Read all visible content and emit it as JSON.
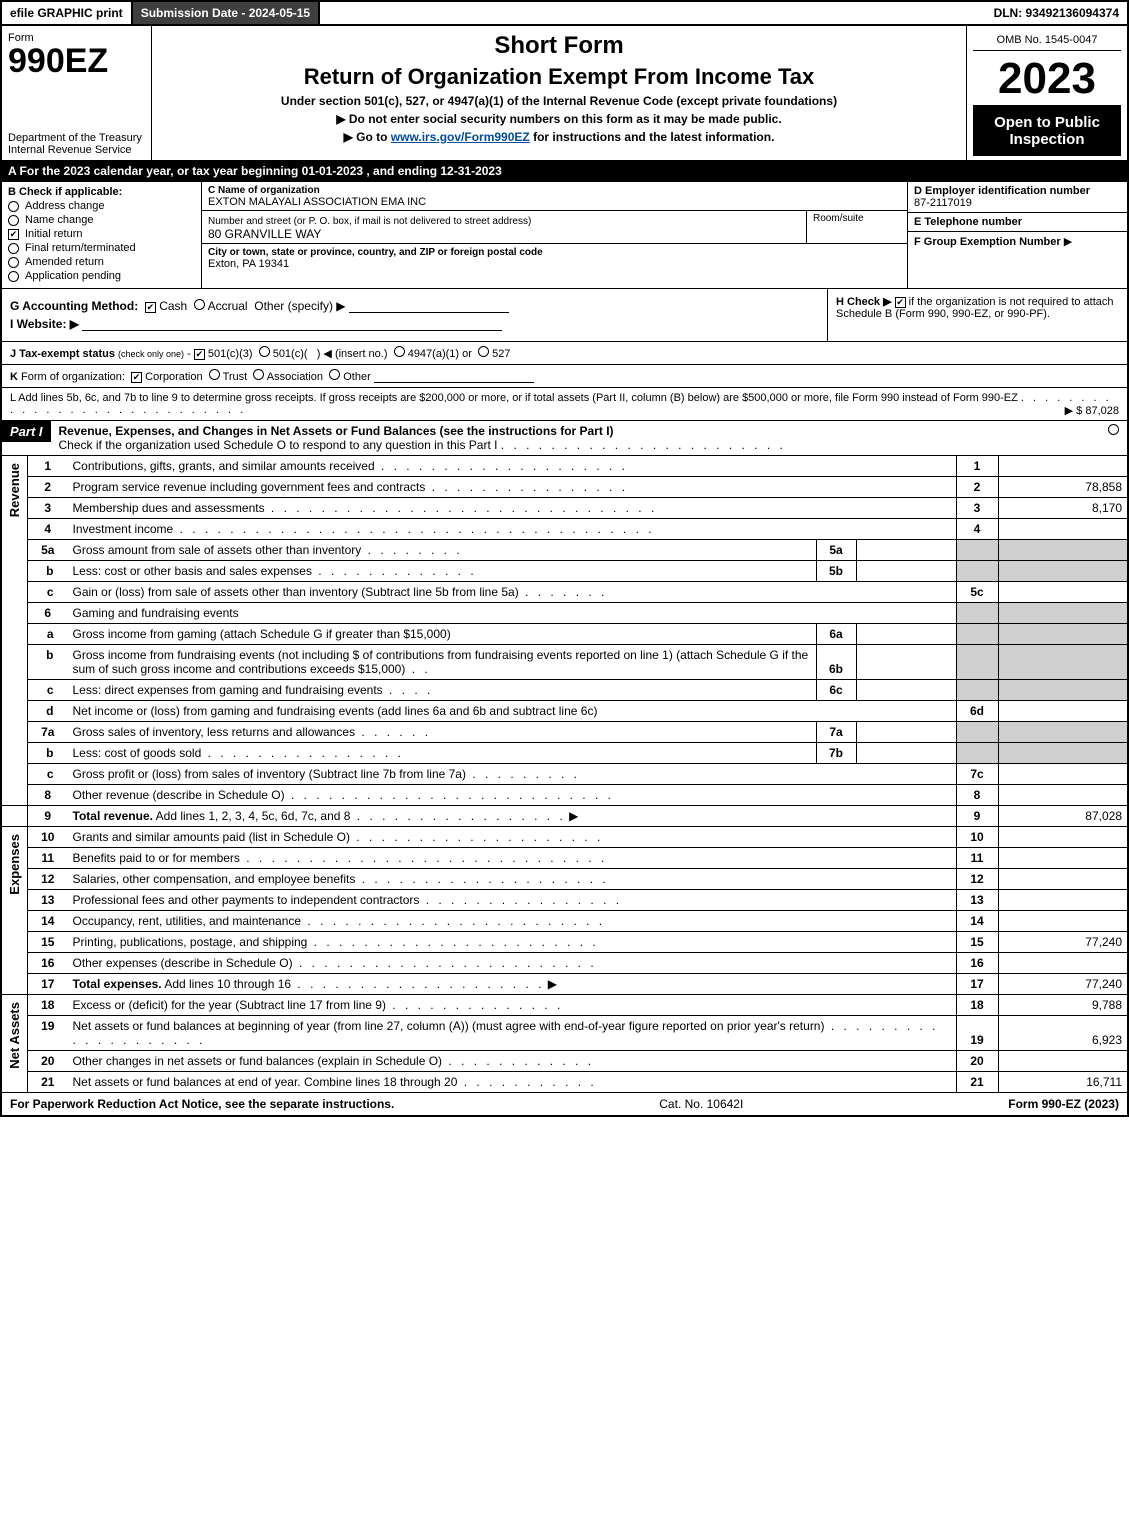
{
  "topbar": {
    "efile": "efile GRAPHIC print",
    "submission": "Submission Date - 2024-05-15",
    "dln": "DLN: 93492136094374"
  },
  "header": {
    "form_word": "Form",
    "form_no": "990EZ",
    "dept": "Department of the Treasury\nInternal Revenue Service",
    "short_form": "Short Form",
    "return_line": "Return of Organization Exempt From Income Tax",
    "under": "Under section 501(c), 527, or 4947(a)(1) of the Internal Revenue Code (except private foundations)",
    "no_ssn": "▶ Do not enter social security numbers on this form as it may be made public.",
    "goto_pre": "▶ Go to ",
    "goto_link": "www.irs.gov/Form990EZ",
    "goto_post": " for instructions and the latest information.",
    "omb": "OMB No. 1545-0047",
    "year": "2023",
    "open": "Open to Public Inspection"
  },
  "A": "A  For the 2023 calendar year, or tax year beginning 01-01-2023 , and ending 12-31-2023",
  "B": {
    "hdr": "B  Check if applicable:",
    "items": [
      {
        "label": "Address change",
        "checked": false,
        "round": true
      },
      {
        "label": "Name change",
        "checked": false,
        "round": true
      },
      {
        "label": "Initial return",
        "checked": true,
        "round": false
      },
      {
        "label": "Final return/terminated",
        "checked": false,
        "round": true
      },
      {
        "label": "Amended return",
        "checked": false,
        "round": true
      },
      {
        "label": "Application pending",
        "checked": false,
        "round": true
      }
    ]
  },
  "C": {
    "name_lbl": "C Name of organization",
    "name": "EXTON MALAYALI ASSOCIATION EMA INC",
    "addr_lbl": "Number and street (or P. O. box, if mail is not delivered to street address)",
    "addr": "80 GRANVILLE WAY",
    "room_lbl": "Room/suite",
    "city_lbl": "City or town, state or province, country, and ZIP or foreign postal code",
    "city": "Exton, PA  19341"
  },
  "D": {
    "lbl": "D Employer identification number",
    "val": "87-2117019"
  },
  "E": {
    "lbl": "E Telephone number",
    "val": ""
  },
  "F": {
    "lbl": "F Group Exemption Number",
    "arrow": "▶"
  },
  "G": {
    "lbl": "G Accounting Method:",
    "cash": "Cash",
    "accrual": "Accrual",
    "other": "Other (specify) ▶"
  },
  "H": {
    "lbl": "H  Check ▶",
    "rest": "if the organization is not required to attach Schedule B (Form 990, 990-EZ, or 990-PF)."
  },
  "I": {
    "lbl": "I Website: ▶"
  },
  "J": {
    "full": "J Tax-exempt status (check only one) - ☑ 501(c)(3)  ◯ 501(c)(  ) ◀ (insert no.)  ◯ 4947(a)(1) or  ◯ 527"
  },
  "K": {
    "full": "K Form of organization:  ☑ Corporation  ◯ Trust  ◯ Association  ◯ Other"
  },
  "L": {
    "text": "L Add lines 5b, 6c, and 7b to line 9 to determine gross receipts. If gross receipts are $200,000 or more, or if total assets (Part II, column (B) below) are $500,000 or more, file Form 990 instead of Form 990-EZ",
    "amt": "▶ $ 87,028"
  },
  "partI": {
    "label": "Part I",
    "title": "Revenue, Expenses, and Changes in Net Assets or Fund Balances (see the instructions for Part I)",
    "sub": "Check if the organization used Schedule O to respond to any question in this Part I",
    "chk": "◻"
  },
  "side": {
    "revenue": "Revenue",
    "expenses": "Expenses",
    "netassets": "Net Assets"
  },
  "rows": {
    "r1": {
      "no": "1",
      "desc": "Contributions, gifts, grants, and similar amounts received",
      "box": "1",
      "val": ""
    },
    "r2": {
      "no": "2",
      "desc": "Program service revenue including government fees and contracts",
      "box": "2",
      "val": "78,858"
    },
    "r3": {
      "no": "3",
      "desc": "Membership dues and assessments",
      "box": "3",
      "val": "8,170"
    },
    "r4": {
      "no": "4",
      "desc": "Investment income",
      "box": "4",
      "val": ""
    },
    "r5a": {
      "no": "5a",
      "desc": "Gross amount from sale of assets other than inventory",
      "sub": "5a"
    },
    "r5b": {
      "no": "b",
      "desc": "Less: cost or other basis and sales expenses",
      "sub": "5b"
    },
    "r5c": {
      "no": "c",
      "desc": "Gain or (loss) from sale of assets other than inventory (Subtract line 5b from line 5a)",
      "box": "5c",
      "val": ""
    },
    "r6": {
      "no": "6",
      "desc": "Gaming and fundraising events"
    },
    "r6a": {
      "no": "a",
      "desc": "Gross income from gaming (attach Schedule G if greater than $15,000)",
      "sub": "6a"
    },
    "r6b": {
      "no": "b",
      "desc": "Gross income from fundraising events (not including $                   of contributions from fundraising events reported on line 1) (attach Schedule G if the sum of such gross income and contributions exceeds $15,000)",
      "sub": "6b"
    },
    "r6c": {
      "no": "c",
      "desc": "Less: direct expenses from gaming and fundraising events",
      "sub": "6c"
    },
    "r6d": {
      "no": "d",
      "desc": "Net income or (loss) from gaming and fundraising events (add lines 6a and 6b and subtract line 6c)",
      "box": "6d",
      "val": ""
    },
    "r7a": {
      "no": "7a",
      "desc": "Gross sales of inventory, less returns and allowances",
      "sub": "7a"
    },
    "r7b": {
      "no": "b",
      "desc": "Less: cost of goods sold",
      "sub": "7b"
    },
    "r7c": {
      "no": "c",
      "desc": "Gross profit or (loss) from sales of inventory (Subtract line 7b from line 7a)",
      "box": "7c",
      "val": ""
    },
    "r8": {
      "no": "8",
      "desc": "Other revenue (describe in Schedule O)",
      "box": "8",
      "val": ""
    },
    "r9": {
      "no": "9",
      "desc": "Total revenue. Add lines 1, 2, 3, 4, 5c, 6d, 7c, and 8",
      "box": "9",
      "val": "87,028",
      "bold": true,
      "arrow": true
    },
    "r10": {
      "no": "10",
      "desc": "Grants and similar amounts paid (list in Schedule O)",
      "box": "10",
      "val": ""
    },
    "r11": {
      "no": "11",
      "desc": "Benefits paid to or for members",
      "box": "11",
      "val": ""
    },
    "r12": {
      "no": "12",
      "desc": "Salaries, other compensation, and employee benefits",
      "box": "12",
      "val": ""
    },
    "r13": {
      "no": "13",
      "desc": "Professional fees and other payments to independent contractors",
      "box": "13",
      "val": ""
    },
    "r14": {
      "no": "14",
      "desc": "Occupancy, rent, utilities, and maintenance",
      "box": "14",
      "val": ""
    },
    "r15": {
      "no": "15",
      "desc": "Printing, publications, postage, and shipping",
      "box": "15",
      "val": "77,240"
    },
    "r16": {
      "no": "16",
      "desc": "Other expenses (describe in Schedule O)",
      "box": "16",
      "val": ""
    },
    "r17": {
      "no": "17",
      "desc": "Total expenses. Add lines 10 through 16",
      "box": "17",
      "val": "77,240",
      "bold": true,
      "arrow": true
    },
    "r18": {
      "no": "18",
      "desc": "Excess or (deficit) for the year (Subtract line 17 from line 9)",
      "box": "18",
      "val": "9,788"
    },
    "r19": {
      "no": "19",
      "desc": "Net assets or fund balances at beginning of year (from line 27, column (A)) (must agree with end-of-year figure reported on prior year's return)",
      "box": "19",
      "val": "6,923"
    },
    "r20": {
      "no": "20",
      "desc": "Other changes in net assets or fund balances (explain in Schedule O)",
      "box": "20",
      "val": ""
    },
    "r21": {
      "no": "21",
      "desc": "Net assets or fund balances at end of year. Combine lines 18 through 20",
      "box": "21",
      "val": "16,711"
    }
  },
  "footer": {
    "left": "For Paperwork Reduction Act Notice, see the separate instructions.",
    "mid": "Cat. No. 10642I",
    "right": "Form 990-EZ (2023)"
  },
  "colors": {
    "black": "#000000",
    "darkgrey": "#3f3f3f",
    "lightgrey": "#cfcfcf",
    "link": "#004b9b"
  }
}
